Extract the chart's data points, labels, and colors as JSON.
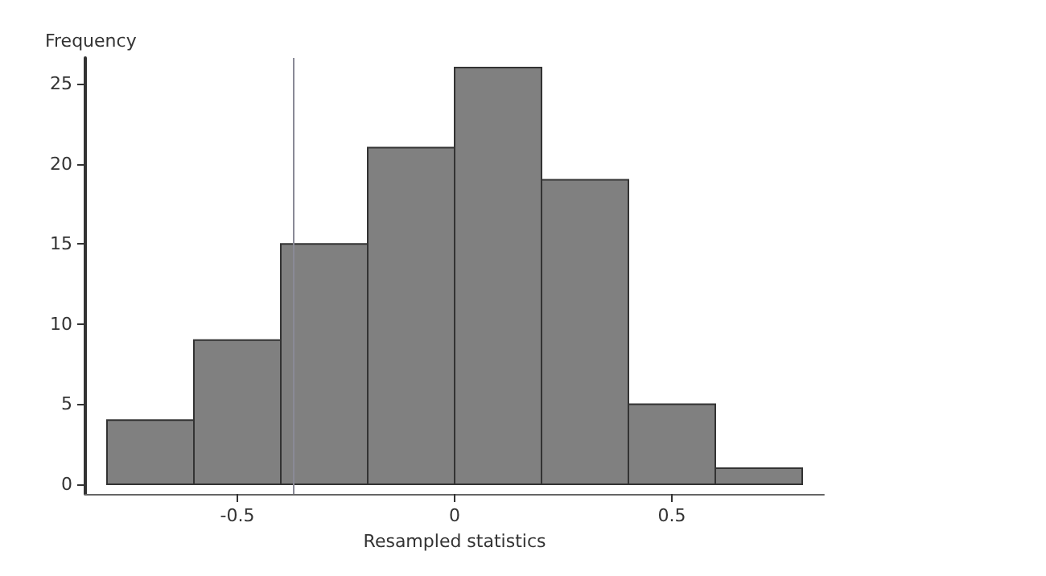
{
  "chart_data": {
    "type": "histogram",
    "xlabel": "Resampled statistics",
    "ylabel": "Frequency",
    "bins": [
      -0.8,
      -0.6,
      -0.4,
      -0.2,
      0,
      0.2,
      0.4,
      0.6,
      0.8
    ],
    "values": [
      4,
      9,
      15,
      21,
      26,
      19,
      5,
      1
    ],
    "color": "#808080",
    "xlim": [
      -0.85,
      0.85
    ],
    "xticks": [
      -0.5,
      0,
      0.5
    ],
    "ylim": [
      -0.6,
      26.6
    ],
    "yticks": [
      0,
      5,
      10,
      15,
      20,
      25
    ],
    "ref_lines": [
      {
        "axis": "x",
        "value": -0.37,
        "color": "#8a8a96"
      }
    ],
    "grid": false
  }
}
